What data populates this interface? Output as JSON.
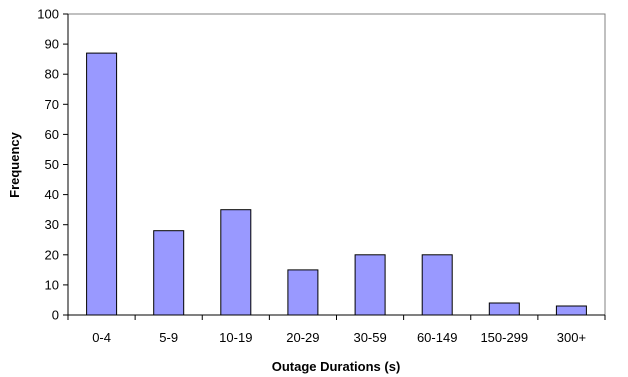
{
  "chart_data": {
    "type": "bar",
    "title": "",
    "xlabel": "Outage Durations (s)",
    "ylabel": "Frequency",
    "categories": [
      "0-4",
      "5-9",
      "10-19",
      "20-29",
      "30-59",
      "60-149",
      "150-299",
      "300+"
    ],
    "values": [
      87,
      28,
      35,
      15,
      20,
      20,
      4,
      3
    ],
    "ylim": [
      0,
      100
    ],
    "yticks": [
      0,
      10,
      20,
      30,
      40,
      50,
      60,
      70,
      80,
      90,
      100
    ],
    "grid": false,
    "legend": "none",
    "bar_color": "#9999ff",
    "bar_stroke": "#000000"
  }
}
